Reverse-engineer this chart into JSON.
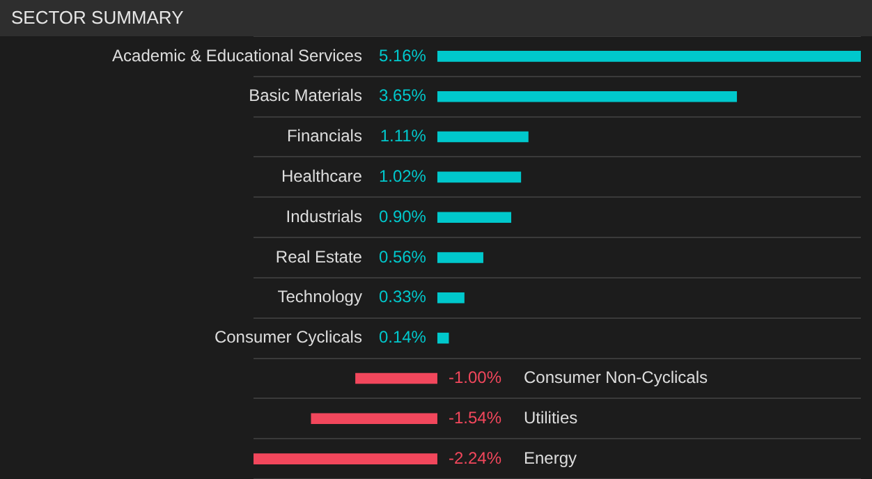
{
  "chart_data": {
    "type": "bar",
    "orientation": "horizontal",
    "title": "SECTOR SUMMARY",
    "grid": "y",
    "categories": [
      "Academic & Educational Services",
      "Basic Materials",
      "Financials",
      "Healthcare",
      "Industrials",
      "Real Estate",
      "Technology",
      "Consumer Cyclicals",
      "Consumer Non-Cyclicals",
      "Utilities",
      "Energy"
    ],
    "values": [
      5.16,
      3.65,
      1.11,
      1.02,
      0.9,
      0.56,
      0.33,
      0.14,
      -1.0,
      -1.54,
      -2.24
    ],
    "value_labels": [
      "5.16%",
      "3.65%",
      "1.11%",
      "1.02%",
      "0.90%",
      "0.56%",
      "0.33%",
      "0.14%",
      "-1.00%",
      "-1.54%",
      "-2.24%"
    ],
    "colors": [
      "#00c8cc",
      "#00c8cc",
      "#00c8cc",
      "#00c8cc",
      "#00c8cc",
      "#00c8cc",
      "#00c8cc",
      "#00c8cc",
      "#f2475c",
      "#f2475c",
      "#f2475c"
    ]
  }
}
